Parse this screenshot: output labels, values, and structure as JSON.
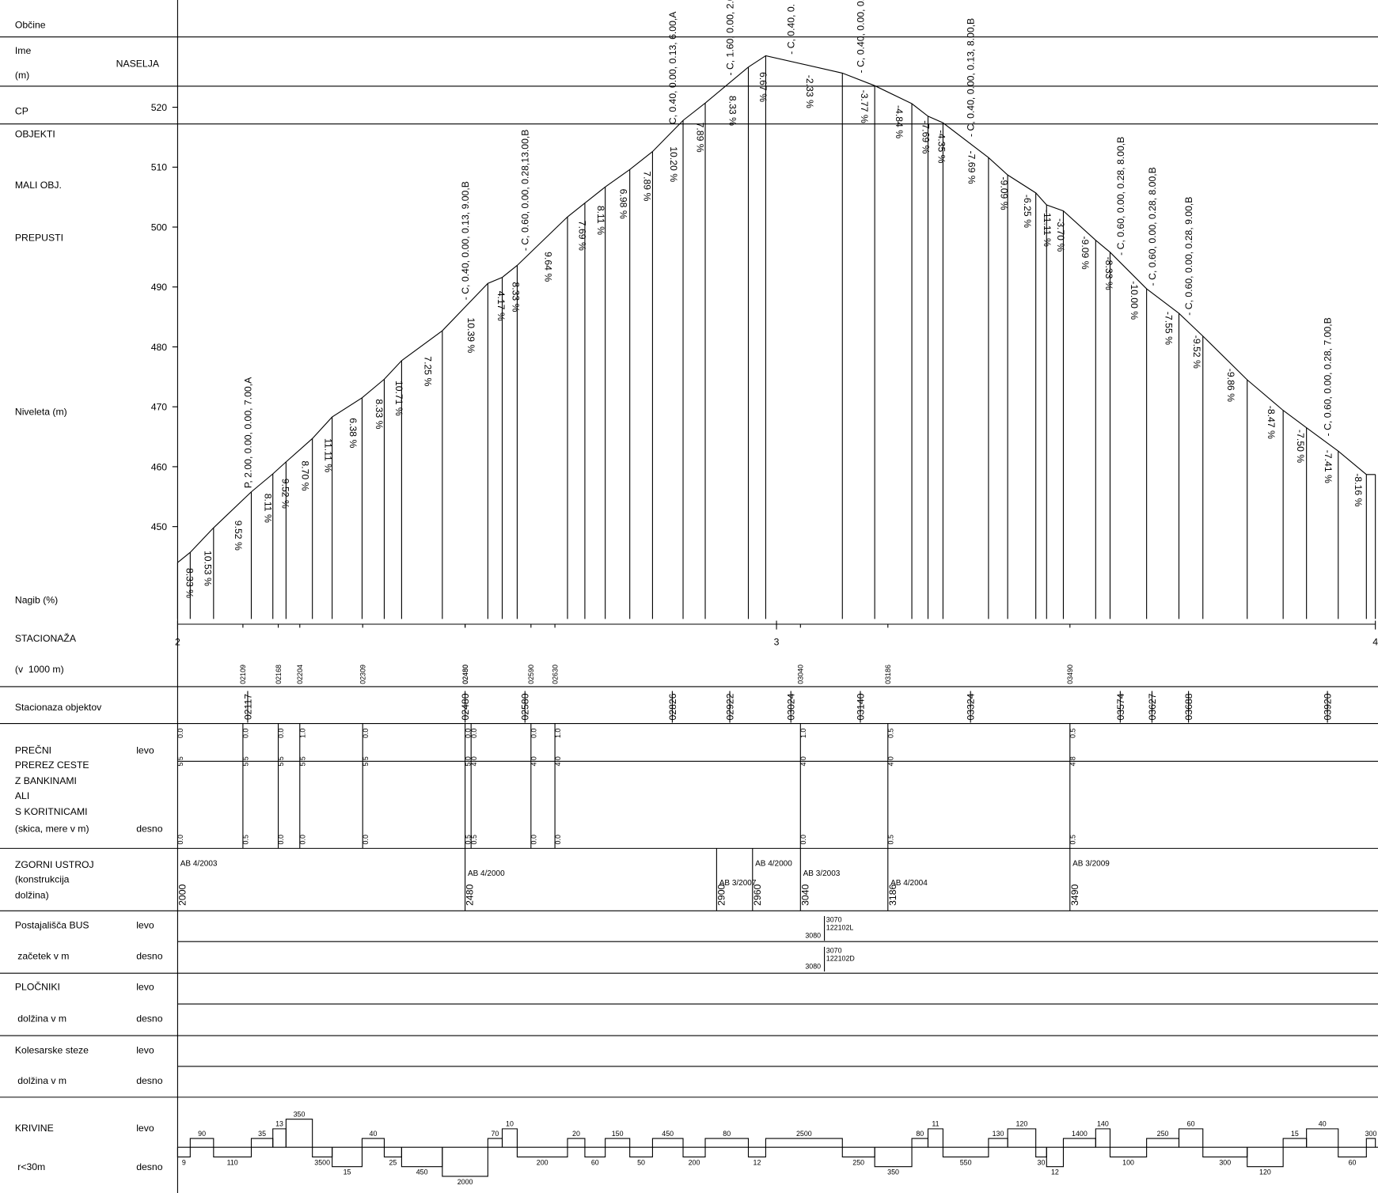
{
  "left_labels": [
    "Občine",
    "Ime",
    "NASELJA",
    "(m)",
    "CP",
    "OBJEKTI",
    "MALI OBJ.",
    "PREPUSTI",
    "Niveleta (m)",
    "Nagib (%)",
    "STACIONAŽA",
    "(v  1000 m)",
    "Stacionaza objektov",
    "PREČNI",
    "PREREZ CESTE",
    "Z BANKINAMI",
    "ALI",
    "S KORITNICAMI",
    "(skica, mere v m)",
    "levo",
    "desno",
    "ZGORNI USTROJ",
    "(konstrukcija",
    "dolžina)",
    "Postajališča BUS",
    "levo",
    " začetek v m",
    "desno",
    "PLOČNIKI",
    "levo",
    " dolžina v m",
    "desno",
    "Kolesarske steze",
    "levo",
    " dolžina v m",
    "desno",
    "KRIVINE",
    "levo",
    " r<30m",
    "desno"
  ],
  "elevation_axis": {
    "ylim": [
      450,
      520
    ],
    "yticks": [
      450,
      460,
      470,
      480,
      490,
      500,
      510,
      520
    ]
  },
  "station_axis": {
    "xlim": [
      2000,
      4000
    ],
    "xticks": [
      {
        "value": 2000,
        "label": "2"
      },
      {
        "value": 3000,
        "label": "3"
      },
      {
        "value": 4000,
        "label": "4"
      }
    ]
  },
  "profile": {
    "stations": [
      2000,
      2021,
      2060,
      2123,
      2159,
      2181,
      2225,
      2258,
      2308,
      2345,
      2374,
      2442,
      2518,
      2542,
      2567,
      2651,
      2680,
      2714,
      2755,
      2793,
      2844,
      2881,
      2953,
      2982,
      3110,
      3164,
      3226,
      3253,
      3278,
      3354,
      3386,
      3433,
      3451,
      3479,
      3533,
      3557,
      3618,
      3672,
      3712,
      3786,
      3846,
      3885,
      3938,
      3985,
      4000
    ],
    "elevations": [
      444.0,
      445.7,
      449.8,
      455.8,
      458.8,
      460.8,
      464.7,
      468.3,
      471.5,
      474.6,
      477.7,
      482.7,
      490.6,
      491.6,
      493.6,
      501.7,
      504.0,
      506.7,
      509.6,
      512.6,
      517.8,
      520.7,
      526.7,
      528.6,
      525.7,
      523.6,
      520.6,
      518.5,
      517.4,
      511.6,
      508.7,
      505.7,
      503.7,
      502.7,
      497.8,
      495.8,
      489.7,
      485.6,
      481.8,
      474.5,
      469.4,
      466.5,
      462.6,
      458.7,
      458.7
    ],
    "grades": [
      "8.33 %",
      "10.53 %",
      "9.52 %",
      "8.11 %",
      "9.52 %",
      "8.70 %",
      "11.11 %",
      "6.38 %",
      "8.33 %",
      "10.71 %",
      "7.25 %",
      "10.39 %",
      "4.17 %",
      "8.33 %",
      "9.64 %",
      "7.69 %",
      "8.11 %",
      "6.98 %",
      "7.89 %",
      "10.20 %",
      "7.89 %",
      "8.33 %",
      "6.67 %",
      "-2.33 %",
      "-3.77 %",
      "-4.84 %",
      "-7.69 %",
      "-4.35 %",
      "-7.69 %",
      "-9.09 %",
      "-6.25 %",
      "-11.11 %",
      "-3.70 %",
      "-9.09 %",
      "-8.33 %",
      "-10.00 %",
      "-7.55 %",
      "-9.52 %",
      "-9.86 %",
      "-8.47 %",
      "-7.50 %",
      "-7.41 %",
      "-8.16 %",
      null
    ]
  },
  "objects": [
    {
      "station": {
        "value": 2117,
        "label": "02117"
      },
      "note": "P, 2.00, 0.00, 0.00, 7.00,A"
    },
    {
      "station": {
        "value": 2480,
        "label": "02480"
      },
      "note": "- C, 0.40, 0.00, 0.13, 9.00,B"
    },
    {
      "station": {
        "value": 2580,
        "label": "02580"
      },
      "note": "- C, 0.60, 0.00, 0.28,13.00,B"
    },
    {
      "station": {
        "value": 2826,
        "label": "02826"
      },
      "note": "C, 0.40, 0.00, 0.13, 6.00,A"
    },
    {
      "station": {
        "value": 2922,
        "label": "02922"
      },
      "note": "- C, 1.60, 0.00, 2.0"
    },
    {
      "station": {
        "value": 3024,
        "label": "03024"
      },
      "note": "- C, 0.40, 0."
    },
    {
      "station": {
        "value": 3140,
        "label": "03140"
      },
      "note": "- C, 0.40, 0.00, 0."
    },
    {
      "station": {
        "value": 3324,
        "label": "03324"
      },
      "note": "- C, 0.40, 0.00, 0.13, 8.00,B"
    },
    {
      "station": {
        "value": 3574,
        "label": "03574"
      },
      "note": "- C, 0.60, 0.00, 0.28, 8.00,B"
    },
    {
      "station": {
        "value": 3627,
        "label": "03627"
      },
      "note": "- C, 0.60, 0.00, 0.28, 8.00,B"
    },
    {
      "station": {
        "value": 3688,
        "label": "03688"
      },
      "note": "- C, 0.60, 0.00, 0.28, 9.00,B"
    },
    {
      "station": {
        "value": 3920,
        "label": "03920"
      },
      "note": "- C, 0.60, 0.00, 0.28, 7.00,B"
    }
  ],
  "station_marks": [
    {
      "value": 2109,
      "label": "02109"
    },
    {
      "value": 2168,
      "label": "02168"
    },
    {
      "value": 2204,
      "label": "02204"
    },
    {
      "value": 2309,
      "label": "02309"
    },
    {
      "value": 2480,
      "label": "02480"
    },
    {
      "value": 2480,
      "label": "02480"
    },
    {
      "value": 2590,
      "label": "02590"
    },
    {
      "value": 2630,
      "label": "02630"
    },
    {
      "value": 3040,
      "label": "03040"
    },
    {
      "value": 3186,
      "label": "03186"
    },
    {
      "value": 3490,
      "label": "03490"
    }
  ],
  "cross_sections": [
    {
      "station": 2000,
      "levo": "0.0",
      "width": "5.5",
      "desno": "0.0"
    },
    {
      "station": 2109,
      "levo": "0.0",
      "width": "5.5",
      "desno": "0.5"
    },
    {
      "station": 2168,
      "levo": "0.0",
      "width": "5.5",
      "desno": "0.0"
    },
    {
      "station": 2204,
      "levo": "1.0",
      "width": "5.5",
      "desno": "0.0"
    },
    {
      "station": 2309,
      "levo": "0.0",
      "width": "5.5",
      "desno": "0.0"
    },
    {
      "station": 2480,
      "levo": "0.0",
      "width": "5.0",
      "desno": "0.5"
    },
    {
      "station": 2490,
      "levo": "0.0",
      "width": "4.0",
      "desno": "0.5"
    },
    {
      "station": 2590,
      "levo": "0.0",
      "width": "4.0",
      "desno": "0.0"
    },
    {
      "station": 2630,
      "levo": "1.0",
      "width": "4.0",
      "desno": "0.0"
    },
    {
      "station": 3040,
      "levo": "1.0",
      "width": "4.0",
      "desno": "0.0"
    },
    {
      "station": 3186,
      "levo": "0.5",
      "width": "4.0",
      "desno": "0.5"
    },
    {
      "station": 3490,
      "levo": "0.5",
      "width": "4.8",
      "desno": "0.5"
    }
  ],
  "structures": [
    {
      "station": 2000,
      "label": "AB 4/2003"
    },
    {
      "station": 2480,
      "label": "AB 4/2000"
    },
    {
      "station": 2900,
      "label": "AB 3/2007"
    },
    {
      "station": 2960,
      "label": "AB 4/2000"
    },
    {
      "station": 3040,
      "label": "AB 3/2003"
    },
    {
      "station": 3186,
      "label": "AB 4/2004"
    },
    {
      "station": 3490,
      "label": "AB 3/2009"
    }
  ],
  "bus_stops": {
    "station": 3080,
    "levo": {
      "start": 3070,
      "code": "122102L",
      "end": 3080
    },
    "desno": {
      "start": 3070,
      "code": "122102D",
      "end": 3080
    }
  },
  "curves": {
    "levo": [
      null,
      90,
      null,
      35,
      13,
      350,
      null,
      null,
      40,
      null,
      null,
      null,
      70,
      10,
      null,
      20,
      null,
      150,
      null,
      450,
      null,
      80,
      null,
      2500,
      null,
      null,
      80,
      11,
      null,
      130,
      120,
      null,
      null,
      1400,
      140,
      null,
      250,
      60,
      null,
      null,
      15,
      40,
      null,
      300
    ],
    "desno": [
      9,
      null,
      110,
      null,
      null,
      null,
      3500,
      15,
      null,
      25,
      450,
      2000,
      null,
      null,
      200,
      null,
      60,
      null,
      50,
      null,
      200,
      null,
      12,
      null,
      250,
      350,
      null,
      null,
      550,
      null,
      null,
      30,
      12,
      null,
      null,
      100,
      null,
      null,
      300,
      120,
      null,
      null,
      60,
      null
    ]
  }
}
